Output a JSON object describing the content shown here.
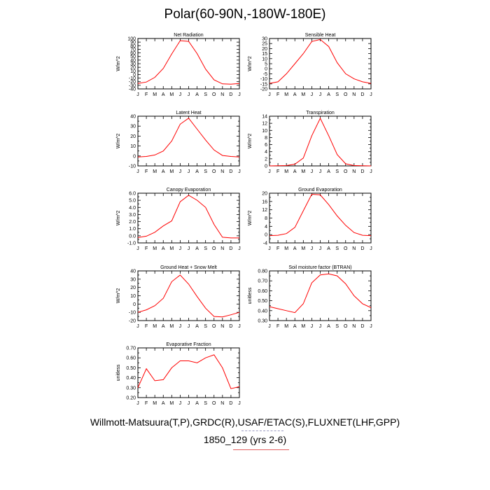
{
  "title": "Polar(60-90N,-180W-180E)",
  "footer": {
    "line1": "Willmott-Matsuura(T,P),GRDC(R),USAF/ETAC(S),FLUXNET(LHF,GPP)",
    "line2": "1850_129 (yrs 2-6)"
  },
  "colors": {
    "series": "#ff0000",
    "axis": "#000000"
  },
  "chart_data": [
    {
      "type": "line",
      "title": "Net Radiation",
      "ylabel": "W/m^2",
      "xlabel": "",
      "categories": [
        "J",
        "F",
        "M",
        "A",
        "M",
        "J",
        "J",
        "A",
        "S",
        "O",
        "N",
        "D",
        "J"
      ],
      "ylim": [
        -40,
        100
      ],
      "yticks": [
        -40,
        -30,
        -20,
        -10,
        0,
        10,
        20,
        30,
        40,
        50,
        60,
        70,
        80,
        90,
        100
      ],
      "yticklabels": [
        "-40",
        "-30",
        "-20",
        "-10",
        "0",
        "10",
        "20",
        "30",
        "40",
        "50",
        "60",
        "70",
        "80",
        "90",
        "100"
      ],
      "series": [
        {
          "values": [
            -25,
            -21,
            -8,
            17,
            57,
            94,
            92,
            58,
            15,
            -15,
            -26,
            -27,
            -25
          ]
        }
      ]
    },
    {
      "type": "line",
      "title": "Sensible Heat",
      "ylabel": "W/m^2",
      "xlabel": "",
      "categories": [
        "J",
        "F",
        "M",
        "A",
        "M",
        "J",
        "J",
        "A",
        "S",
        "O",
        "N",
        "D",
        "J"
      ],
      "ylim": [
        -20,
        30
      ],
      "yticks": [
        -20,
        -15,
        -10,
        -5,
        0,
        5,
        10,
        15,
        20,
        25,
        30
      ],
      "yticklabels": [
        "-20",
        "-15",
        "-10",
        "-5",
        "0",
        "5",
        "10",
        "15",
        "20",
        "25",
        "30"
      ],
      "series": [
        {
          "values": [
            -14.5,
            -13,
            -5,
            5,
            15,
            27,
            29,
            22,
            6,
            -5,
            -10,
            -13,
            -14.5
          ]
        }
      ]
    },
    {
      "type": "line",
      "title": "Latent Heat",
      "ylabel": "W/m^2",
      "xlabel": "",
      "categories": [
        "J",
        "F",
        "M",
        "A",
        "M",
        "J",
        "J",
        "A",
        "S",
        "O",
        "N",
        "D",
        "J"
      ],
      "ylim": [
        -10,
        40
      ],
      "yticks": [
        -10,
        -5,
        0,
        5,
        10,
        15,
        20,
        25,
        30,
        35,
        40
      ],
      "yticklabels": [
        "-10",
        "",
        "0",
        "",
        "10",
        "",
        "20",
        "",
        "30",
        "",
        "40"
      ],
      "series": [
        {
          "values": [
            -1,
            -0.5,
            1,
            5,
            15,
            32,
            38,
            27,
            16,
            6,
            0.5,
            -0.5,
            -1
          ]
        }
      ]
    },
    {
      "type": "line",
      "title": "Transpiration",
      "ylabel": "W/m^2",
      "xlabel": "",
      "categories": [
        "J",
        "F",
        "M",
        "A",
        "M",
        "J",
        "J",
        "A",
        "S",
        "O",
        "N",
        "D",
        "J"
      ],
      "ylim": [
        0,
        14
      ],
      "yticks": [
        0,
        1,
        2,
        3,
        4,
        5,
        6,
        7,
        8,
        9,
        10,
        11,
        12,
        13,
        14
      ],
      "yticklabels": [
        "0",
        "",
        "2",
        "",
        "4",
        "",
        "6",
        "",
        "8",
        "",
        "10",
        "",
        "12",
        "",
        "14"
      ],
      "series": [
        {
          "values": [
            0,
            0.05,
            0.1,
            0.5,
            2.2,
            8.5,
            13.4,
            8.5,
            3.2,
            0.6,
            0.1,
            0.05,
            0
          ]
        }
      ]
    },
    {
      "type": "line",
      "title": "Canopy Evaporation",
      "ylabel": "W/m^2",
      "xlabel": "",
      "categories": [
        "J",
        "F",
        "M",
        "A",
        "M",
        "J",
        "J",
        "A",
        "S",
        "O",
        "N",
        "D",
        "J"
      ],
      "ylim": [
        -1,
        6
      ],
      "yticks": [
        -1,
        -0.5,
        0,
        0.5,
        1,
        1.5,
        2,
        2.5,
        3,
        3.5,
        4,
        4.5,
        5,
        5.5,
        6
      ],
      "yticklabels": [
        "-1.0",
        "",
        "0.0",
        "",
        "1.0",
        "",
        "2.0",
        "",
        "3.0",
        "",
        "4.0",
        "",
        "5.0",
        "",
        "6.0"
      ],
      "series": [
        {
          "values": [
            -0.25,
            -0.05,
            0.5,
            1.4,
            2.1,
            4.8,
            5.7,
            5.0,
            4.0,
            1.6,
            -0.2,
            -0.3,
            -0.3
          ]
        }
      ]
    },
    {
      "type": "line",
      "title": "Ground Evaporation",
      "ylabel": "W/m^2",
      "xlabel": "",
      "categories": [
        "J",
        "F",
        "M",
        "A",
        "M",
        "J",
        "J",
        "A",
        "S",
        "O",
        "N",
        "D",
        "J"
      ],
      "ylim": [
        -4,
        20
      ],
      "yticks": [
        -4,
        -2,
        0,
        2,
        4,
        6,
        8,
        10,
        12,
        14,
        16,
        18,
        20
      ],
      "yticklabels": [
        "-4",
        "",
        "0",
        "",
        "4",
        "",
        "8",
        "",
        "12",
        "",
        "16",
        "",
        "20"
      ],
      "series": [
        {
          "values": [
            -0.5,
            -0.3,
            0.5,
            3.5,
            11.5,
            19.5,
            19.2,
            14.5,
            9,
            4.5,
            1,
            -0.3,
            -0.5
          ]
        }
      ]
    },
    {
      "type": "line",
      "title": "Ground Heat + Snow Melt",
      "ylabel": "W/m^2",
      "xlabel": "",
      "categories": [
        "J",
        "F",
        "M",
        "A",
        "M",
        "J",
        "J",
        "A",
        "S",
        "O",
        "N",
        "D",
        "J"
      ],
      "ylim": [
        -20,
        40
      ],
      "yticks": [
        -20,
        -15,
        -10,
        -5,
        0,
        5,
        10,
        15,
        20,
        25,
        30,
        35,
        40
      ],
      "yticklabels": [
        "-20",
        "",
        "-10",
        "",
        "0",
        "",
        "10",
        "",
        "20",
        "",
        "30",
        "",
        "40"
      ],
      "series": [
        {
          "values": [
            -10,
            -7,
            -2,
            7,
            27,
            35,
            24,
            9,
            -5,
            -15,
            -15.5,
            -13,
            -10
          ]
        }
      ]
    },
    {
      "type": "line",
      "title": "Soil moisture factor (BTRAN)",
      "ylabel": "unitless",
      "xlabel": "",
      "categories": [
        "J",
        "F",
        "M",
        "A",
        "M",
        "J",
        "J",
        "A",
        "S",
        "O",
        "N",
        "D",
        "J"
      ],
      "ylim": [
        0.3,
        0.8
      ],
      "yticks": [
        0.3,
        0.35,
        0.4,
        0.45,
        0.5,
        0.55,
        0.6,
        0.65,
        0.7,
        0.75,
        0.8
      ],
      "yticklabels": [
        "0.30",
        "",
        "0.40",
        "",
        "0.50",
        "",
        "0.60",
        "",
        "0.70",
        "",
        "0.80"
      ],
      "series": [
        {
          "values": [
            0.44,
            0.42,
            0.4,
            0.38,
            0.47,
            0.68,
            0.76,
            0.77,
            0.75,
            0.67,
            0.55,
            0.47,
            0.43
          ]
        }
      ]
    },
    {
      "type": "line",
      "title": "Evaporative Fraction",
      "ylabel": "unitless",
      "xlabel": "",
      "categories": [
        "J",
        "F",
        "M",
        "A",
        "M",
        "J",
        "J",
        "A",
        "S",
        "O",
        "N",
        "D",
        "J"
      ],
      "ylim": [
        0.2,
        0.7
      ],
      "yticks": [
        0.2,
        0.25,
        0.3,
        0.35,
        0.4,
        0.45,
        0.5,
        0.55,
        0.6,
        0.65,
        0.7
      ],
      "yticklabels": [
        "0.20",
        "",
        "0.30",
        "",
        "0.40",
        "",
        "0.50",
        "",
        "0.60",
        "",
        "0.70"
      ],
      "series": [
        {
          "values": [
            0.3,
            0.49,
            0.37,
            0.38,
            0.5,
            0.57,
            0.57,
            0.55,
            0.6,
            0.63,
            0.5,
            0.29,
            0.31
          ]
        }
      ]
    }
  ]
}
